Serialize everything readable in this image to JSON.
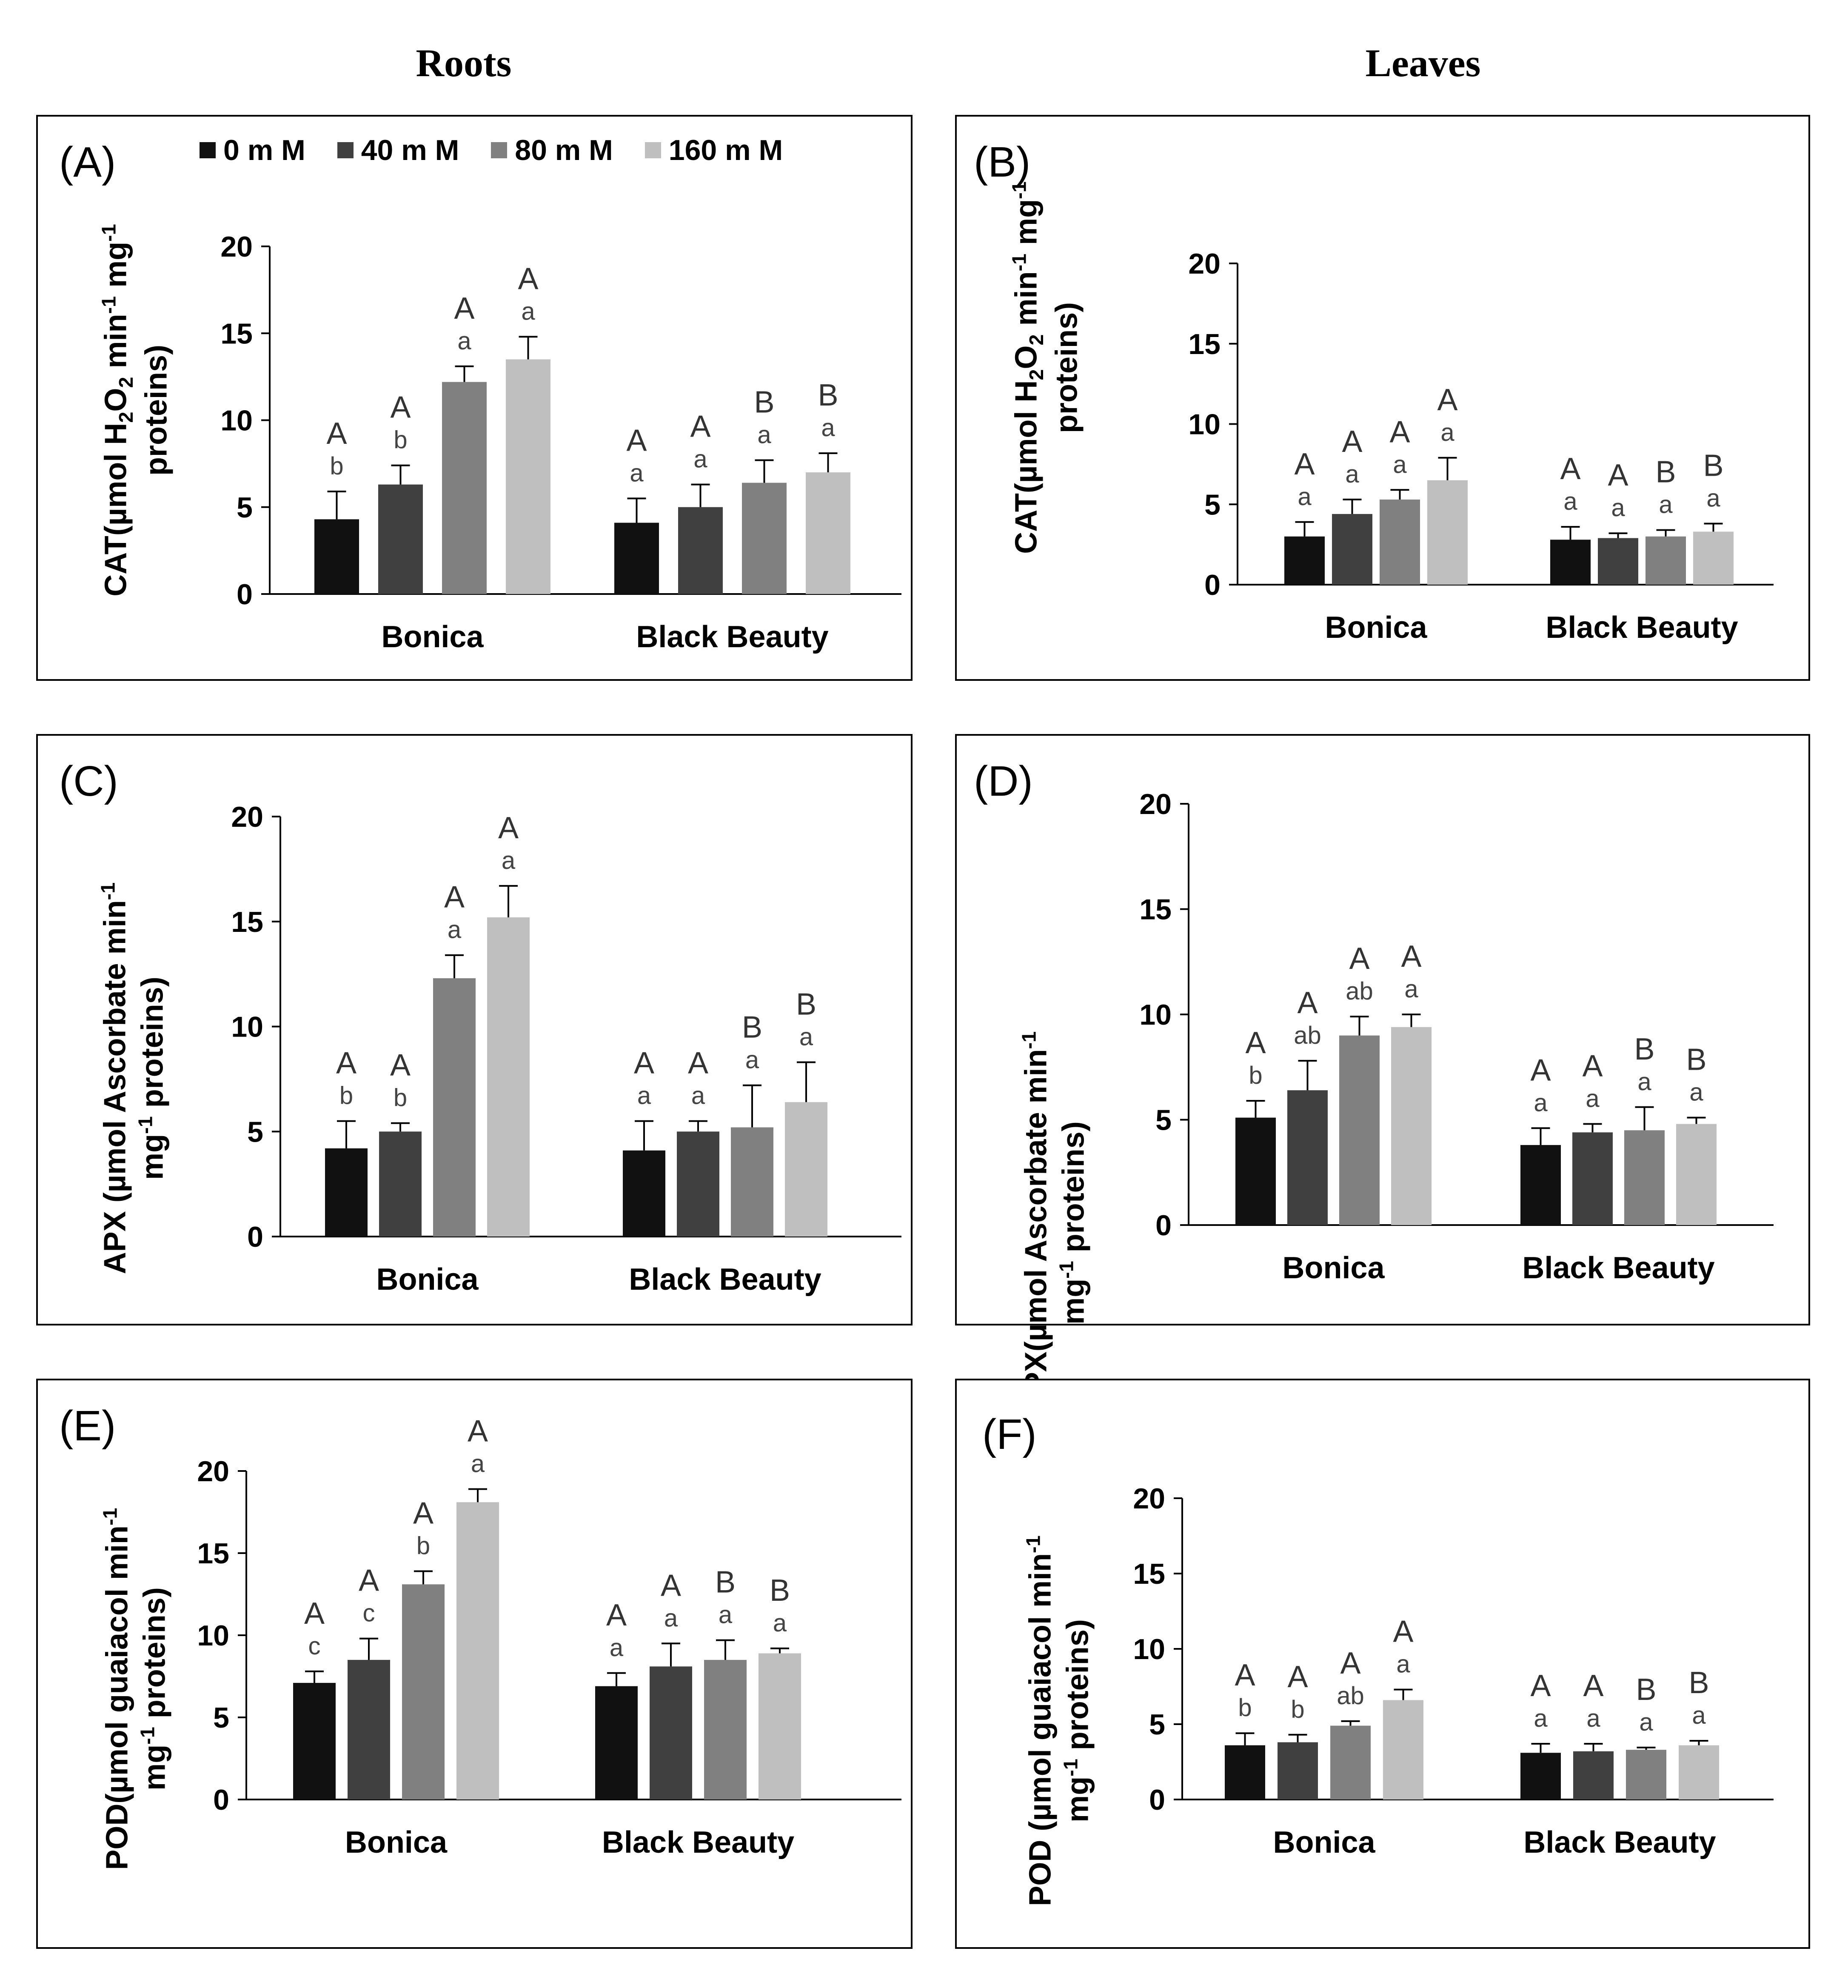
{
  "column_titles": {
    "roots": "Roots",
    "leaves": "Leaves"
  },
  "legend": {
    "items": [
      {
        "label": "0 m M",
        "color": "#111111"
      },
      {
        "label": "40 m M",
        "color": "#404040"
      },
      {
        "label": "80 m M",
        "color": "#808080"
      },
      {
        "label": "160 m M",
        "color": "#bfbfbf"
      }
    ]
  },
  "chart_data": [
    {
      "type": "bar",
      "panel": "(A)",
      "title": "Roots",
      "ylabel": {
        "prefix": "CAT(µmol H",
        "sub1": "2",
        "mid1": "O",
        "sub2": "2",
        "mid2": " min",
        "sup1": "-1",
        "mid3": " mg",
        "sup2": "-1",
        "line2": "proteins)"
      },
      "ylim": [
        0,
        20
      ],
      "yticks": [
        0,
        5,
        10,
        15,
        20
      ],
      "categories": [
        "Bonica",
        "Black Beauty"
      ],
      "series": [
        {
          "name": "0 m M",
          "values": [
            4.3,
            4.1
          ],
          "errors": [
            1.6,
            1.4
          ],
          "upper": [
            "A",
            "A"
          ],
          "lower": [
            "b",
            "a"
          ]
        },
        {
          "name": "40 m M",
          "values": [
            6.3,
            5.0
          ],
          "errors": [
            1.1,
            1.3
          ],
          "upper": [
            "A",
            "A"
          ],
          "lower": [
            "b",
            "a"
          ]
        },
        {
          "name": "80 m M",
          "values": [
            12.2,
            6.4
          ],
          "errors": [
            0.9,
            1.3
          ],
          "upper": [
            "A",
            "B"
          ],
          "lower": [
            "a",
            "a"
          ]
        },
        {
          "name": "160 m M",
          "values": [
            13.5,
            7.0
          ],
          "errors": [
            1.3,
            1.1
          ],
          "upper": [
            "A",
            "B"
          ],
          "lower": [
            "a",
            "a"
          ]
        }
      ]
    },
    {
      "type": "bar",
      "panel": "(B)",
      "title": "Leaves",
      "ylabel": {
        "prefix": "CAT(µmol H",
        "sub1": "2",
        "mid1": "O",
        "sub2": "2",
        "mid2": " min",
        "sup1": "-1",
        "mid3": " mg",
        "sup2": "-1",
        "line2": "proteins)"
      },
      "ylim": [
        0,
        20
      ],
      "yticks": [
        0,
        5,
        10,
        15,
        20
      ],
      "categories": [
        "Bonica",
        "Black Beauty"
      ],
      "series": [
        {
          "name": "0 m M",
          "values": [
            3.0,
            2.8
          ],
          "errors": [
            0.9,
            0.8
          ],
          "upper": [
            "A",
            "A"
          ],
          "lower": [
            "a",
            "a"
          ]
        },
        {
          "name": "40 m M",
          "values": [
            4.4,
            2.9
          ],
          "errors": [
            0.9,
            0.3
          ],
          "upper": [
            "A",
            "A"
          ],
          "lower": [
            "a",
            "a"
          ]
        },
        {
          "name": "80 m M",
          "values": [
            5.3,
            3.0
          ],
          "errors": [
            0.6,
            0.4
          ],
          "upper": [
            "A",
            "B"
          ],
          "lower": [
            "a",
            "a"
          ]
        },
        {
          "name": "160 m M",
          "values": [
            6.5,
            3.3
          ],
          "errors": [
            1.4,
            0.5
          ],
          "upper": [
            "A",
            "B"
          ],
          "lower": [
            "a",
            "a"
          ]
        }
      ]
    },
    {
      "type": "bar",
      "panel": "(C)",
      "title": "Roots",
      "ylabel": {
        "line1a": "APX (µmol Ascorbate min",
        "sup1": "-1",
        "line2a": "mg",
        "sup2": "-1",
        "line2b": " proteins)"
      },
      "ylim": [
        0,
        20
      ],
      "yticks": [
        0,
        5,
        10,
        15,
        20
      ],
      "categories": [
        "Bonica",
        "Black Beauty"
      ],
      "series": [
        {
          "name": "0 m M",
          "values": [
            4.2,
            4.1
          ],
          "errors": [
            1.3,
            1.4
          ],
          "upper": [
            "A",
            "A"
          ],
          "lower": [
            "b",
            "a"
          ]
        },
        {
          "name": "40 m M",
          "values": [
            5.0,
            5.0
          ],
          "errors": [
            0.4,
            0.5
          ],
          "upper": [
            "A",
            "A"
          ],
          "lower": [
            "b",
            "a"
          ]
        },
        {
          "name": "80 m M",
          "values": [
            12.3,
            5.2
          ],
          "errors": [
            1.1,
            2.0
          ],
          "upper": [
            "A",
            "B"
          ],
          "lower": [
            "a",
            "a"
          ]
        },
        {
          "name": "160 m M",
          "values": [
            15.2,
            6.4
          ],
          "errors": [
            1.5,
            1.9
          ],
          "upper": [
            "A",
            "B"
          ],
          "lower": [
            "a",
            "a"
          ]
        }
      ]
    },
    {
      "type": "bar",
      "panel": "(D)",
      "title": "Leaves",
      "ylabel": {
        "line1a": "APX(µmol Ascorbate min",
        "sup1": "-1",
        "line2a": "mg",
        "sup2": "-1",
        "line2b": " proteins)"
      },
      "ylim": [
        0,
        20
      ],
      "yticks": [
        0,
        5,
        10,
        15,
        20
      ],
      "categories": [
        "Bonica",
        "Black Beauty"
      ],
      "series": [
        {
          "name": "0 m M",
          "values": [
            5.1,
            3.8
          ],
          "errors": [
            0.8,
            0.8
          ],
          "upper": [
            "A",
            "A"
          ],
          "lower": [
            "b",
            "a"
          ]
        },
        {
          "name": "40 m M",
          "values": [
            6.4,
            4.4
          ],
          "errors": [
            1.4,
            0.4
          ],
          "upper": [
            "A",
            "A"
          ],
          "lower": [
            "ab",
            "a"
          ]
        },
        {
          "name": "80 m M",
          "values": [
            9.0,
            4.5
          ],
          "errors": [
            0.9,
            1.1
          ],
          "upper": [
            "A",
            "B"
          ],
          "lower": [
            "ab",
            "a"
          ]
        },
        {
          "name": "160 m M",
          "values": [
            9.4,
            4.8
          ],
          "errors": [
            0.6,
            0.3
          ],
          "upper": [
            "A",
            "B"
          ],
          "lower": [
            "a",
            "a"
          ]
        }
      ]
    },
    {
      "type": "bar",
      "panel": "(E)",
      "title": "Roots",
      "ylabel": {
        "line1a": "POD(µmol guaiacol min",
        "sup1": "-1",
        "line2a": "mg",
        "sup2": "-1",
        "line2b": " proteins)"
      },
      "ylim": [
        0,
        20
      ],
      "yticks": [
        0,
        5,
        10,
        15,
        20
      ],
      "categories": [
        "Bonica",
        "Black Beauty"
      ],
      "series": [
        {
          "name": "0 m M",
          "values": [
            7.1,
            6.9
          ],
          "errors": [
            0.7,
            0.8
          ],
          "upper": [
            "A",
            "A"
          ],
          "lower": [
            "c",
            "a"
          ]
        },
        {
          "name": "40 m M",
          "values": [
            8.5,
            8.1
          ],
          "errors": [
            1.3,
            1.4
          ],
          "upper": [
            "A",
            "A"
          ],
          "lower": [
            "c",
            "a"
          ]
        },
        {
          "name": "80 m M",
          "values": [
            13.1,
            8.5
          ],
          "errors": [
            0.8,
            1.2
          ],
          "upper": [
            "A",
            "B"
          ],
          "lower": [
            "b",
            "a"
          ]
        },
        {
          "name": "160 m M",
          "values": [
            18.1,
            8.9
          ],
          "errors": [
            0.8,
            0.3
          ],
          "upper": [
            "A",
            "B"
          ],
          "lower": [
            "a",
            "a"
          ]
        }
      ]
    },
    {
      "type": "bar",
      "panel": "(F)",
      "title": "Leaves",
      "ylabel": {
        "line1a": "POD (µmol guaiacol min",
        "sup1": "-1",
        "line2a": "mg",
        "sup2": "-1",
        "line2b": " proteins)"
      },
      "ylim": [
        0,
        20
      ],
      "yticks": [
        0,
        5,
        10,
        15,
        20
      ],
      "categories": [
        "Bonica",
        "Black Beauty"
      ],
      "series": [
        {
          "name": "0 m M",
          "values": [
            3.6,
            3.1
          ],
          "errors": [
            0.8,
            0.6
          ],
          "upper": [
            "A",
            "A"
          ],
          "lower": [
            "b",
            "a"
          ]
        },
        {
          "name": "40 m M",
          "values": [
            3.8,
            3.2
          ],
          "errors": [
            0.5,
            0.5
          ],
          "upper": [
            "A",
            "A"
          ],
          "lower": [
            "b",
            "a"
          ]
        },
        {
          "name": "80 m M",
          "values": [
            4.9,
            3.3
          ],
          "errors": [
            0.3,
            0.15
          ],
          "upper": [
            "A",
            "B"
          ],
          "lower": [
            "ab",
            "a"
          ]
        },
        {
          "name": "160 m M",
          "values": [
            6.6,
            3.6
          ],
          "errors": [
            0.7,
            0.3
          ],
          "upper": [
            "A",
            "B"
          ],
          "lower": [
            "a",
            "a"
          ]
        }
      ]
    }
  ]
}
